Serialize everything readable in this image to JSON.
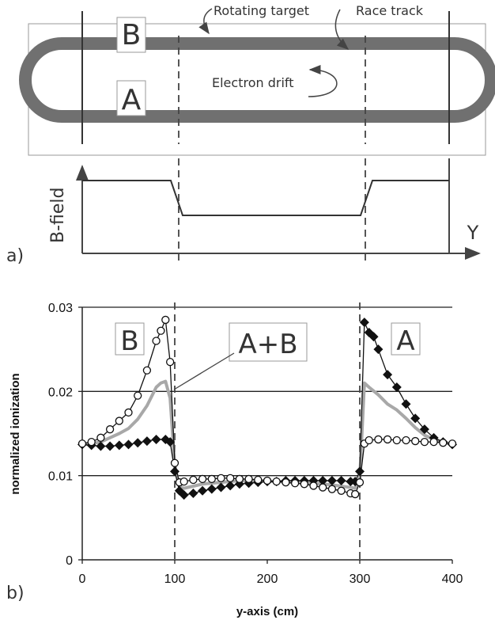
{
  "panel_a": {
    "label": "a)",
    "labels": {
      "B": "B",
      "A": "A",
      "rotating_target": "Rotating target",
      "race_track": "Race track",
      "electron_drift": "Electron drift",
      "b_field": "B-field",
      "y": "Y"
    }
  },
  "panel_b": {
    "label": "b)"
  },
  "chart_data": {
    "type": "line",
    "xlabel": "y-axis (cm)",
    "ylabel": "normalized ionization",
    "xlim": [
      0,
      400
    ],
    "ylim": [
      0,
      0.03
    ],
    "x_ticks": [
      "0",
      "100",
      "200",
      "300",
      "400"
    ],
    "y_ticks": [
      "0",
      "0.01",
      "0.02",
      "0.03"
    ],
    "grid": "horizontal",
    "vlines": [
      100,
      300
    ],
    "annotations": [
      "B",
      "A+B",
      "A"
    ],
    "series": [
      {
        "marker": "circle",
        "x": [
          0,
          10,
          20,
          30,
          40,
          50,
          60,
          70,
          80,
          85,
          90,
          95,
          100,
          105,
          110,
          120,
          130,
          140,
          150,
          160,
          170,
          180,
          190,
          200,
          210,
          220,
          230,
          240,
          250,
          260,
          270,
          280,
          290,
          295,
          300,
          305,
          310,
          320,
          330,
          340,
          350,
          360,
          370,
          380,
          390,
          400
        ],
        "y": [
          0.0138,
          0.014,
          0.0145,
          0.0155,
          0.0165,
          0.0175,
          0.0195,
          0.0225,
          0.026,
          0.0272,
          0.0285,
          0.0235,
          0.0115,
          0.0092,
          0.0093,
          0.0095,
          0.0096,
          0.0096,
          0.0097,
          0.0097,
          0.0096,
          0.0096,
          0.0095,
          0.0094,
          0.0093,
          0.0092,
          0.0091,
          0.009,
          0.0088,
          0.0086,
          0.0084,
          0.0082,
          0.0079,
          0.0078,
          0.0092,
          0.0138,
          0.0142,
          0.0143,
          0.0143,
          0.0142,
          0.0142,
          0.0141,
          0.014,
          0.014,
          0.0139,
          0.0138
        ]
      },
      {
        "marker": "diamond",
        "x": [
          0,
          10,
          20,
          30,
          40,
          50,
          60,
          70,
          80,
          90,
          95,
          100,
          105,
          110,
          120,
          130,
          140,
          150,
          160,
          170,
          180,
          190,
          200,
          210,
          220,
          230,
          240,
          250,
          260,
          270,
          280,
          290,
          295,
          300,
          305,
          310,
          315,
          320,
          330,
          340,
          350,
          360,
          370,
          380,
          390,
          400
        ],
        "y": [
          0.0137,
          0.0136,
          0.0135,
          0.0135,
          0.0136,
          0.0137,
          0.0139,
          0.0141,
          0.0143,
          0.0143,
          0.014,
          0.0105,
          0.0082,
          0.0077,
          0.0079,
          0.0082,
          0.0084,
          0.0086,
          0.0088,
          0.009,
          0.0091,
          0.0092,
          0.0093,
          0.0093,
          0.0094,
          0.0094,
          0.0094,
          0.0094,
          0.0094,
          0.0094,
          0.0094,
          0.0093,
          0.0093,
          0.0105,
          0.0282,
          0.027,
          0.0265,
          0.025,
          0.022,
          0.0205,
          0.0185,
          0.0168,
          0.0155,
          0.0145,
          0.014,
          0.0137
        ]
      },
      {
        "marker": "none",
        "color": "#a8a8a8",
        "x": [
          0,
          10,
          20,
          30,
          40,
          50,
          60,
          70,
          80,
          85,
          90,
          95,
          100,
          105,
          110,
          130,
          150,
          170,
          190,
          210,
          230,
          250,
          270,
          290,
          295,
          300,
          305,
          310,
          320,
          330,
          340,
          350,
          360,
          370,
          380,
          390,
          400
        ],
        "y": [
          0.0137,
          0.0138,
          0.014,
          0.0145,
          0.015,
          0.0156,
          0.0167,
          0.0183,
          0.0205,
          0.021,
          0.0212,
          0.0192,
          0.0112,
          0.0087,
          0.0085,
          0.009,
          0.0092,
          0.0094,
          0.0094,
          0.0093,
          0.0092,
          0.0091,
          0.0089,
          0.0086,
          0.0085,
          0.0098,
          0.021,
          0.0205,
          0.0196,
          0.0185,
          0.0178,
          0.0168,
          0.0157,
          0.0148,
          0.0143,
          0.014,
          0.0137
        ]
      }
    ]
  }
}
